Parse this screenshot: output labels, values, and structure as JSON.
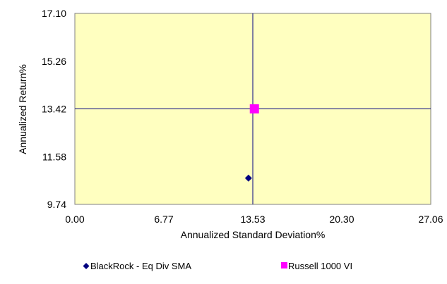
{
  "chart_data": {
    "type": "scatter",
    "title": "",
    "xlabel": "Annualized Standard Deviation%",
    "ylabel": "Annualized Return%",
    "xlim": [
      0,
      27.06
    ],
    "ylim": [
      9.74,
      17.1
    ],
    "x_ticks": [
      "0.00",
      "6.77",
      "13.53",
      "20.30",
      "27.06"
    ],
    "y_ticks": [
      "17.10",
      "15.26",
      "13.42",
      "11.58",
      "9.74"
    ],
    "grid": false,
    "plot_background": "#FFFFC0",
    "reference_lines": {
      "x": 13.53,
      "y": 13.42,
      "color": "#000080"
    },
    "legend_position": "bottom",
    "series": [
      {
        "name": "BlackRock - Eq Div SMA",
        "marker": "diamond",
        "color": "#000080",
        "x": [
          13.2
        ],
        "y": [
          10.75
        ]
      },
      {
        "name": "Russell 1000 VI",
        "marker": "square",
        "color": "#FF00FF",
        "x": [
          13.65
        ],
        "y": [
          13.42
        ]
      }
    ]
  }
}
